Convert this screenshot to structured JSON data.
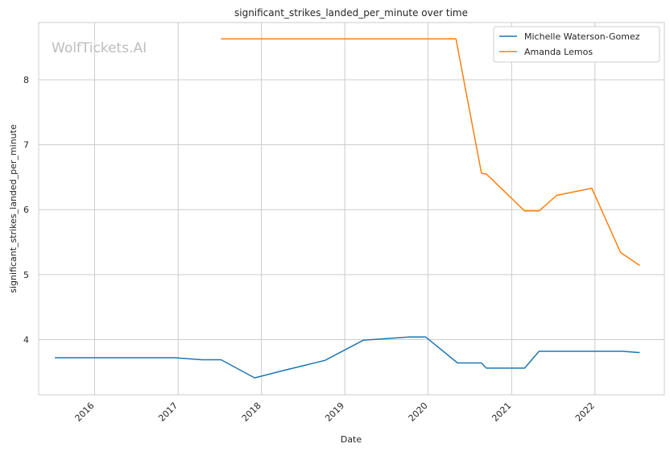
{
  "chart_data": {
    "type": "line",
    "title": "significant_strikes_landed_per_minute over time",
    "xlabel": "Date",
    "ylabel": "significant_strikes_landed_per_minute",
    "watermark": "WolfTickets.AI",
    "x_ticks": [
      "2016",
      "2017",
      "2018",
      "2019",
      "2020",
      "2021",
      "2022"
    ],
    "y_ticks": [
      4,
      5,
      6,
      7,
      8
    ],
    "xlim": [
      "2015-05-01",
      "2022-11-01"
    ],
    "ylim": [
      3.15,
      8.88
    ],
    "grid": true,
    "legend_position": "top-right",
    "series": [
      {
        "name": "Michelle Waterson-Gomez",
        "color": "#1f77b4",
        "points": [
          [
            "2015-07-11",
            3.72
          ],
          [
            "2016-12-17",
            3.72
          ],
          [
            "2017-04-15",
            3.69
          ],
          [
            "2017-07-08",
            3.69
          ],
          [
            "2017-12-02",
            3.41
          ],
          [
            "2018-04-14",
            3.53
          ],
          [
            "2018-10-06",
            3.68
          ],
          [
            "2019-03-23",
            3.99
          ],
          [
            "2019-10-12",
            4.04
          ],
          [
            "2019-12-21",
            4.04
          ],
          [
            "2020-05-09",
            3.64
          ],
          [
            "2020-08-22",
            3.64
          ],
          [
            "2020-09-12",
            3.56
          ],
          [
            "2021-02-27",
            3.56
          ],
          [
            "2021-05-01",
            3.82
          ],
          [
            "2022-04-30",
            3.82
          ],
          [
            "2022-07-16",
            3.8
          ]
        ]
      },
      {
        "name": "Amanda Lemos",
        "color": "#ff7f0e",
        "points": [
          [
            "2017-07-08",
            8.63
          ],
          [
            "2020-05-02",
            8.63
          ],
          [
            "2020-08-22",
            6.56
          ],
          [
            "2020-09-12",
            6.55
          ],
          [
            "2021-02-27",
            5.98
          ],
          [
            "2021-05-01",
            5.98
          ],
          [
            "2021-07-17",
            6.22
          ],
          [
            "2021-12-18",
            6.33
          ],
          [
            "2022-04-23",
            5.34
          ],
          [
            "2022-07-16",
            5.14
          ]
        ]
      }
    ]
  }
}
